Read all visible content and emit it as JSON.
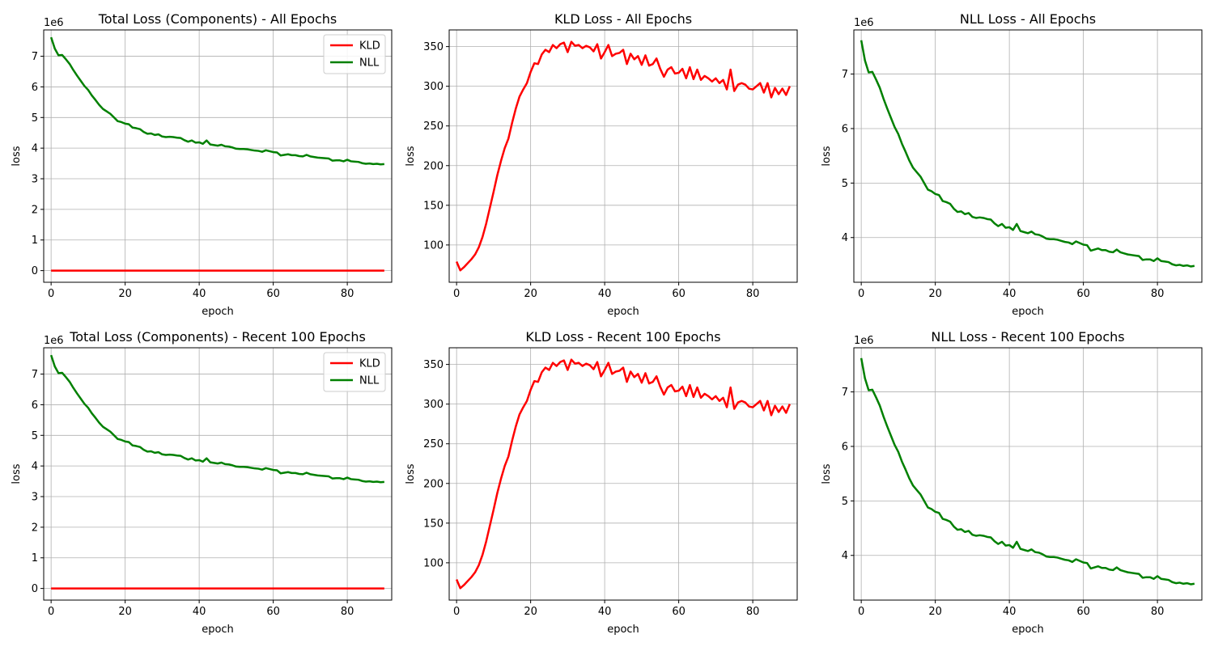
{
  "figure": {
    "background": "#ffffff",
    "grid_color": "#b0b0b0",
    "colors": {
      "KLD": "#ff0000",
      "NLL": "#008000"
    }
  },
  "chart_data": [
    {
      "type": "line",
      "title": "Total Loss (Components) - All Epochs",
      "xlabel": "epoch",
      "ylabel": "loss",
      "y_offset_label": "1e6",
      "xlim": [
        -2,
        92
      ],
      "ylim": [
        -0.38,
        7.86
      ],
      "xticks": [
        0,
        20,
        40,
        60,
        80
      ],
      "xtick_labels": [
        "0",
        "20",
        "40",
        "60",
        "80"
      ],
      "yticks": [
        0,
        1,
        2,
        3,
        4,
        5,
        6,
        7
      ],
      "ytick_labels": [
        "0",
        "1",
        "2",
        "3",
        "4",
        "5",
        "6",
        "7"
      ],
      "grid": true,
      "legend": {
        "position": "top-right",
        "entries": [
          "KLD",
          "NLL"
        ]
      },
      "series": [
        {
          "name": "KLD",
          "color": "#ff0000",
          "ref": "kld_millions"
        },
        {
          "name": "NLL",
          "color": "#008000",
          "ref": "nll_millions"
        }
      ]
    },
    {
      "type": "line",
      "title": "KLD Loss - All Epochs",
      "xlabel": "epoch",
      "ylabel": "loss",
      "y_offset_label": "",
      "xlim": [
        -2,
        92
      ],
      "ylim": [
        53,
        371
      ],
      "xticks": [
        0,
        20,
        40,
        60,
        80
      ],
      "xtick_labels": [
        "0",
        "20",
        "40",
        "60",
        "80"
      ],
      "yticks": [
        100,
        150,
        200,
        250,
        300,
        350
      ],
      "ytick_labels": [
        "100",
        "150",
        "200",
        "250",
        "300",
        "350"
      ],
      "grid": true,
      "legend": null,
      "series": [
        {
          "name": "KLD",
          "color": "#ff0000",
          "ref": "kld"
        }
      ]
    },
    {
      "type": "line",
      "title": "NLL Loss - All Epochs",
      "xlabel": "epoch",
      "ylabel": "loss",
      "y_offset_label": "1e6",
      "xlim": [
        -2,
        92
      ],
      "ylim": [
        3.18,
        7.81
      ],
      "xticks": [
        0,
        20,
        40,
        60,
        80
      ],
      "xtick_labels": [
        "0",
        "20",
        "40",
        "60",
        "80"
      ],
      "yticks": [
        4,
        5,
        6,
        7
      ],
      "ytick_labels": [
        "4",
        "5",
        "6",
        "7"
      ],
      "grid": true,
      "legend": null,
      "series": [
        {
          "name": "NLL",
          "color": "#008000",
          "ref": "nll_millions"
        }
      ]
    },
    {
      "type": "line",
      "title": "Total Loss (Components) - Recent 100 Epochs",
      "xlabel": "epoch",
      "ylabel": "loss",
      "y_offset_label": "1e6",
      "xlim": [
        -2,
        92
      ],
      "ylim": [
        -0.38,
        7.86
      ],
      "xticks": [
        0,
        20,
        40,
        60,
        80
      ],
      "xtick_labels": [
        "0",
        "20",
        "40",
        "60",
        "80"
      ],
      "yticks": [
        0,
        1,
        2,
        3,
        4,
        5,
        6,
        7
      ],
      "ytick_labels": [
        "0",
        "1",
        "2",
        "3",
        "4",
        "5",
        "6",
        "7"
      ],
      "grid": true,
      "legend": {
        "position": "top-right",
        "entries": [
          "KLD",
          "NLL"
        ]
      },
      "series": [
        {
          "name": "KLD",
          "color": "#ff0000",
          "ref": "kld_millions"
        },
        {
          "name": "NLL",
          "color": "#008000",
          "ref": "nll_millions"
        }
      ]
    },
    {
      "type": "line",
      "title": "KLD Loss - Recent 100 Epochs",
      "xlabel": "epoch",
      "ylabel": "loss",
      "y_offset_label": "",
      "xlim": [
        -2,
        92
      ],
      "ylim": [
        53,
        371
      ],
      "xticks": [
        0,
        20,
        40,
        60,
        80
      ],
      "xtick_labels": [
        "0",
        "20",
        "40",
        "60",
        "80"
      ],
      "yticks": [
        100,
        150,
        200,
        250,
        300,
        350
      ],
      "ytick_labels": [
        "100",
        "150",
        "200",
        "250",
        "300",
        "350"
      ],
      "grid": true,
      "legend": null,
      "series": [
        {
          "name": "KLD",
          "color": "#ff0000",
          "ref": "kld"
        }
      ]
    },
    {
      "type": "line",
      "title": "NLL Loss - Recent 100 Epochs",
      "xlabel": "epoch",
      "ylabel": "loss",
      "y_offset_label": "1e6",
      "xlim": [
        -2,
        92
      ],
      "ylim": [
        3.18,
        7.81
      ],
      "xticks": [
        0,
        20,
        40,
        60,
        80
      ],
      "xtick_labels": [
        "0",
        "20",
        "40",
        "60",
        "80"
      ],
      "yticks": [
        4,
        5,
        6,
        7
      ],
      "ytick_labels": [
        "4",
        "5",
        "6",
        "7"
      ],
      "grid": true,
      "legend": null,
      "series": [
        {
          "name": "NLL",
          "color": "#008000",
          "ref": "nll_millions"
        }
      ]
    }
  ],
  "series_values": {
    "epochs": [
      0,
      1,
      2,
      3,
      4,
      5,
      6,
      7,
      8,
      9,
      10,
      11,
      12,
      13,
      14,
      15,
      16,
      17,
      18,
      19,
      20,
      21,
      22,
      23,
      24,
      25,
      26,
      27,
      28,
      29,
      30,
      31,
      32,
      33,
      34,
      35,
      36,
      37,
      38,
      39,
      40,
      41,
      42,
      43,
      44,
      45,
      46,
      47,
      48,
      49,
      50,
      51,
      52,
      53,
      54,
      55,
      56,
      57,
      58,
      59,
      60,
      61,
      62,
      63,
      64,
      65,
      66,
      67,
      68,
      69,
      70,
      71,
      72,
      73,
      74,
      75,
      76,
      77,
      78,
      79,
      80,
      81,
      82,
      83,
      84,
      85,
      86,
      87,
      88,
      89,
      90
    ],
    "kld": [
      79,
      68,
      72,
      77,
      82,
      88,
      97,
      110,
      127,
      147,
      167,
      188,
      206,
      222,
      234,
      254,
      272,
      287,
      296,
      304,
      318,
      329,
      328,
      340,
      346,
      343,
      352,
      348,
      353,
      355,
      343,
      356,
      351,
      352,
      348,
      351,
      349,
      344,
      353,
      335,
      343,
      352,
      338,
      341,
      342,
      346,
      328,
      341,
      334,
      338,
      327,
      339,
      326,
      328,
      335,
      322,
      312,
      321,
      324,
      316,
      317,
      322,
      310,
      324,
      309,
      321,
      308,
      313,
      310,
      306,
      310,
      304,
      308,
      296,
      321,
      294,
      302,
      304,
      302,
      297,
      296,
      300,
      304,
      292,
      304,
      286,
      298,
      290,
      297,
      289,
      300
    ],
    "kld_millions": [
      7.9e-05,
      6.8e-05,
      7.2e-05,
      7.7e-05,
      8.2e-05,
      8.8e-05,
      9.7e-05,
      0.00011,
      0.000127,
      0.000147,
      0.000167,
      0.000188,
      0.000206,
      0.000222,
      0.000234,
      0.000254,
      0.000272,
      0.000287,
      0.000296,
      0.000304,
      0.000318,
      0.000329,
      0.000328,
      0.00034,
      0.000346,
      0.000343,
      0.000352,
      0.000348,
      0.000353,
      0.000355,
      0.000343,
      0.000356,
      0.000351,
      0.000352,
      0.000348,
      0.000351,
      0.000349,
      0.000344,
      0.000353,
      0.000335,
      0.000343,
      0.000352,
      0.000338,
      0.000341,
      0.000342,
      0.000346,
      0.000328,
      0.000341,
      0.000334,
      0.000338,
      0.000327,
      0.000339,
      0.000326,
      0.000328,
      0.000335,
      0.000322,
      0.000312,
      0.000321,
      0.000324,
      0.000316,
      0.000317,
      0.000322,
      0.00031,
      0.000324,
      0.000309,
      0.000321,
      0.000308,
      0.000313,
      0.00031,
      0.000306,
      0.00031,
      0.000304,
      0.000308,
      0.000296,
      0.000321,
      0.000294,
      0.000302,
      0.000304,
      0.000302,
      0.000297,
      0.000296,
      0.0003,
      0.000304,
      0.000292,
      0.000304,
      0.000286,
      0.000298,
      0.00029,
      0.000297,
      0.000289,
      0.0003
    ],
    "nll_millions": [
      7.62,
      7.25,
      7.03,
      7.04,
      6.9,
      6.75,
      6.55,
      6.37,
      6.2,
      6.03,
      5.9,
      5.72,
      5.57,
      5.41,
      5.28,
      5.2,
      5.12,
      5.0,
      4.88,
      4.85,
      4.8,
      4.78,
      4.67,
      4.65,
      4.62,
      4.53,
      4.47,
      4.48,
      4.43,
      4.45,
      4.38,
      4.36,
      4.37,
      4.36,
      4.34,
      4.33,
      4.26,
      4.21,
      4.25,
      4.18,
      4.19,
      4.14,
      4.25,
      4.12,
      4.1,
      4.08,
      4.11,
      4.06,
      4.05,
      4.02,
      3.98,
      3.97,
      3.97,
      3.96,
      3.94,
      3.92,
      3.91,
      3.88,
      3.93,
      3.9,
      3.87,
      3.86,
      3.76,
      3.78,
      3.8,
      3.77,
      3.77,
      3.74,
      3.73,
      3.78,
      3.73,
      3.71,
      3.69,
      3.68,
      3.67,
      3.66,
      3.59,
      3.6,
      3.6,
      3.57,
      3.62,
      3.57,
      3.56,
      3.55,
      3.51,
      3.49,
      3.5,
      3.48,
      3.49,
      3.47,
      3.48
    ]
  }
}
